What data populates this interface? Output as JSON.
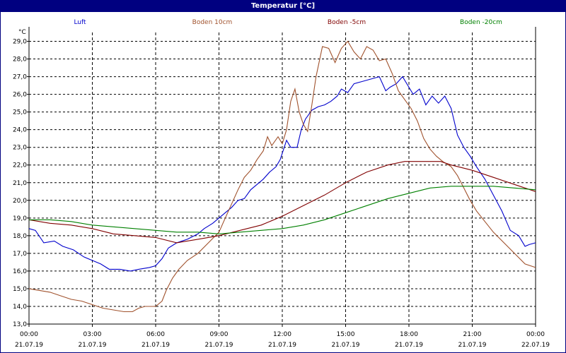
{
  "window": {
    "title": "Temperatur [°C]"
  },
  "chart_data": {
    "type": "line",
    "title": "Temperatur [°C]",
    "ylabel": "°C",
    "ylim": [
      13.0,
      29.5
    ],
    "y_ticks": [
      "13,0",
      "14,0",
      "15,0",
      "16,0",
      "17,0",
      "18,0",
      "19,0",
      "20,0",
      "21,0",
      "22,0",
      "23,0",
      "24,0",
      "25,0",
      "26,0",
      "27,0",
      "28,0",
      "29,0"
    ],
    "xlim": [
      0,
      24
    ],
    "x_ticks": [
      {
        "time": "00:00",
        "date": "21.07.19"
      },
      {
        "time": "03:00",
        "date": "21.07.19"
      },
      {
        "time": "06:00",
        "date": "21.07.19"
      },
      {
        "time": "09:00",
        "date": "21.07.19"
      },
      {
        "time": "12:00",
        "date": "21.07.19"
      },
      {
        "time": "15:00",
        "date": "21.07.19"
      },
      {
        "time": "18:00",
        "date": "21.07.19"
      },
      {
        "time": "21:00",
        "date": "21.07.19"
      },
      {
        "time": "00:00",
        "date": "22.07.19"
      }
    ],
    "grid": true,
    "legend_position": "top",
    "series": [
      {
        "name": "Luft",
        "color": "#0000cc",
        "points": [
          [
            0,
            18.4
          ],
          [
            0.3,
            18.3
          ],
          [
            0.7,
            17.6
          ],
          [
            1.2,
            17.7
          ],
          [
            1.6,
            17.4
          ],
          [
            2.1,
            17.2
          ],
          [
            2.6,
            16.8
          ],
          [
            3.0,
            16.6
          ],
          [
            3.4,
            16.4
          ],
          [
            3.8,
            16.1
          ],
          [
            4.3,
            16.1
          ],
          [
            4.8,
            16.0
          ],
          [
            5.2,
            16.1
          ],
          [
            5.7,
            16.2
          ],
          [
            6.0,
            16.3
          ],
          [
            6.3,
            16.7
          ],
          [
            6.6,
            17.3
          ],
          [
            7.0,
            17.6
          ],
          [
            7.5,
            17.8
          ],
          [
            8.0,
            18.1
          ],
          [
            8.3,
            18.4
          ],
          [
            8.7,
            18.7
          ],
          [
            9.0,
            19.0
          ],
          [
            9.3,
            19.3
          ],
          [
            9.6,
            19.6
          ],
          [
            9.9,
            20.0
          ],
          [
            10.2,
            20.1
          ],
          [
            10.5,
            20.6
          ],
          [
            10.8,
            20.9
          ],
          [
            11.1,
            21.2
          ],
          [
            11.4,
            21.6
          ],
          [
            11.7,
            21.9
          ],
          [
            11.9,
            22.3
          ],
          [
            12.2,
            23.4
          ],
          [
            12.4,
            23.0
          ],
          [
            12.7,
            23.0
          ],
          [
            12.9,
            24.0
          ],
          [
            13.1,
            24.6
          ],
          [
            13.4,
            25.1
          ],
          [
            13.7,
            25.3
          ],
          [
            14.0,
            25.4
          ],
          [
            14.3,
            25.6
          ],
          [
            14.6,
            25.9
          ],
          [
            14.8,
            26.3
          ],
          [
            15.1,
            26.1
          ],
          [
            15.4,
            26.6
          ],
          [
            15.7,
            26.7
          ],
          [
            16.0,
            26.8
          ],
          [
            16.3,
            26.9
          ],
          [
            16.6,
            27.0
          ],
          [
            16.9,
            26.2
          ],
          [
            17.1,
            26.4
          ],
          [
            17.4,
            26.6
          ],
          [
            17.7,
            27.0
          ],
          [
            18.0,
            26.4
          ],
          [
            18.2,
            26.0
          ],
          [
            18.5,
            26.3
          ],
          [
            18.8,
            25.4
          ],
          [
            19.1,
            25.9
          ],
          [
            19.4,
            25.5
          ],
          [
            19.7,
            25.9
          ],
          [
            20.0,
            25.2
          ],
          [
            20.3,
            23.7
          ],
          [
            20.6,
            23.0
          ],
          [
            20.9,
            22.5
          ],
          [
            21.2,
            21.9
          ],
          [
            21.6,
            21.2
          ],
          [
            22.0,
            20.3
          ],
          [
            22.4,
            19.4
          ],
          [
            22.8,
            18.3
          ],
          [
            23.2,
            18.0
          ],
          [
            23.5,
            17.4
          ],
          [
            23.7,
            17.5
          ],
          [
            24.0,
            17.6
          ]
        ]
      },
      {
        "name": "Boden 10cm",
        "color": "#a0522d",
        "points": [
          [
            0,
            15.0
          ],
          [
            0.5,
            14.9
          ],
          [
            1.0,
            14.8
          ],
          [
            1.5,
            14.6
          ],
          [
            2.0,
            14.4
          ],
          [
            2.5,
            14.3
          ],
          [
            3.0,
            14.1
          ],
          [
            3.5,
            13.9
          ],
          [
            4.0,
            13.8
          ],
          [
            4.5,
            13.7
          ],
          [
            4.9,
            13.7
          ],
          [
            5.2,
            13.9
          ],
          [
            5.5,
            14.0
          ],
          [
            6.0,
            14.0
          ],
          [
            6.3,
            14.3
          ],
          [
            6.5,
            14.9
          ],
          [
            6.8,
            15.6
          ],
          [
            7.1,
            16.1
          ],
          [
            7.5,
            16.6
          ],
          [
            8.0,
            17.0
          ],
          [
            8.5,
            17.6
          ],
          [
            9.0,
            18.2
          ],
          [
            9.3,
            19.0
          ],
          [
            9.6,
            19.8
          ],
          [
            9.9,
            20.6
          ],
          [
            10.2,
            21.3
          ],
          [
            10.5,
            21.7
          ],
          [
            10.8,
            22.3
          ],
          [
            11.1,
            22.8
          ],
          [
            11.3,
            23.6
          ],
          [
            11.5,
            23.1
          ],
          [
            11.8,
            23.6
          ],
          [
            12.0,
            23.2
          ],
          [
            12.2,
            24.0
          ],
          [
            12.4,
            25.6
          ],
          [
            12.6,
            26.3
          ],
          [
            12.8,
            25.0
          ],
          [
            13.0,
            24.3
          ],
          [
            13.2,
            23.9
          ],
          [
            13.4,
            25.4
          ],
          [
            13.6,
            27.0
          ],
          [
            13.9,
            28.7
          ],
          [
            14.2,
            28.6
          ],
          [
            14.5,
            27.8
          ],
          [
            14.8,
            28.6
          ],
          [
            15.1,
            29.0
          ],
          [
            15.4,
            28.4
          ],
          [
            15.7,
            28.0
          ],
          [
            16.0,
            28.7
          ],
          [
            16.3,
            28.5
          ],
          [
            16.6,
            27.9
          ],
          [
            16.9,
            28.0
          ],
          [
            17.2,
            27.2
          ],
          [
            17.5,
            26.2
          ],
          [
            17.8,
            25.7
          ],
          [
            18.1,
            25.2
          ],
          [
            18.4,
            24.5
          ],
          [
            18.7,
            23.5
          ],
          [
            19.0,
            22.9
          ],
          [
            19.3,
            22.5
          ],
          [
            19.6,
            22.2
          ],
          [
            20.0,
            21.9
          ],
          [
            20.3,
            21.4
          ],
          [
            20.6,
            20.7
          ],
          [
            20.9,
            20.0
          ],
          [
            21.2,
            19.4
          ],
          [
            21.6,
            18.8
          ],
          [
            22.0,
            18.2
          ],
          [
            22.5,
            17.6
          ],
          [
            23.0,
            17.0
          ],
          [
            23.5,
            16.4
          ],
          [
            24.0,
            16.2
          ]
        ]
      },
      {
        "name": "Boden -5cm",
        "color": "#800000",
        "points": [
          [
            0,
            18.9
          ],
          [
            1.0,
            18.7
          ],
          [
            2.0,
            18.6
          ],
          [
            3.0,
            18.4
          ],
          [
            4.0,
            18.1
          ],
          [
            5.0,
            18.0
          ],
          [
            6.0,
            17.9
          ],
          [
            7.0,
            17.6
          ],
          [
            8.0,
            17.8
          ],
          [
            9.0,
            18.0
          ],
          [
            10.0,
            18.3
          ],
          [
            11.0,
            18.6
          ],
          [
            12.0,
            19.1
          ],
          [
            13.0,
            19.7
          ],
          [
            14.0,
            20.3
          ],
          [
            15.0,
            21.0
          ],
          [
            16.0,
            21.6
          ],
          [
            17.0,
            22.0
          ],
          [
            17.8,
            22.2
          ],
          [
            18.5,
            22.2
          ],
          [
            19.5,
            22.2
          ],
          [
            20.0,
            22.0
          ],
          [
            21.0,
            21.7
          ],
          [
            22.0,
            21.3
          ],
          [
            23.0,
            20.9
          ],
          [
            24.0,
            20.5
          ]
        ]
      },
      {
        "name": "Boden -20cm",
        "color": "#008000",
        "points": [
          [
            0,
            18.9
          ],
          [
            1.0,
            18.9
          ],
          [
            2.0,
            18.8
          ],
          [
            3.0,
            18.6
          ],
          [
            4.0,
            18.5
          ],
          [
            5.0,
            18.4
          ],
          [
            6.0,
            18.3
          ],
          [
            7.0,
            18.2
          ],
          [
            8.0,
            18.2
          ],
          [
            9.0,
            18.1
          ],
          [
            10.0,
            18.2
          ],
          [
            11.0,
            18.3
          ],
          [
            12.0,
            18.4
          ],
          [
            13.0,
            18.6
          ],
          [
            14.0,
            18.9
          ],
          [
            15.0,
            19.3
          ],
          [
            16.0,
            19.7
          ],
          [
            17.0,
            20.1
          ],
          [
            18.0,
            20.4
          ],
          [
            19.0,
            20.7
          ],
          [
            20.0,
            20.8
          ],
          [
            21.0,
            20.8
          ],
          [
            22.0,
            20.8
          ],
          [
            23.0,
            20.7
          ],
          [
            24.0,
            20.6
          ]
        ]
      }
    ]
  }
}
